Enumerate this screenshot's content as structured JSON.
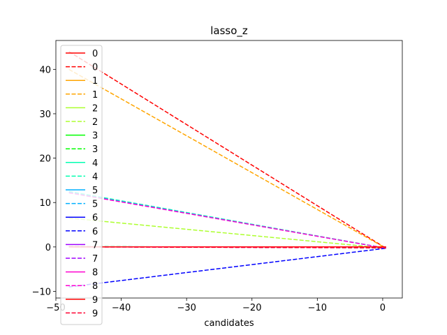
{
  "chart_data": {
    "type": "line",
    "title": "lasso_z",
    "xlabel": "candidates",
    "ylabel": "",
    "xlim": [
      -50,
      3
    ],
    "ylim": [
      -11.5,
      46.5
    ],
    "xticks": [
      -50,
      -40,
      -30,
      -20,
      -10,
      0
    ],
    "xtick_labels": [
      "−50",
      "−40",
      "−30",
      "−20",
      "−10",
      "0"
    ],
    "yticks": [
      -10,
      0,
      10,
      20,
      30,
      40
    ],
    "ytick_labels": [
      "−10",
      "0",
      "10",
      "20",
      "30",
      "40"
    ],
    "grid": false,
    "legend_position": "upper-left",
    "series": [
      {
        "name": "0",
        "color": "#ff0000",
        "dash": "solid",
        "x": [
          -48,
          0.5
        ],
        "y": [
          0,
          0
        ]
      },
      {
        "name": "0",
        "color": "#ff0000",
        "dash": "dashed",
        "x": [
          -48,
          0.5
        ],
        "y": [
          44.0,
          -0.3
        ]
      },
      {
        "name": "1",
        "color": "#ffa500",
        "dash": "solid",
        "x": [
          -48,
          0.5
        ],
        "y": [
          0,
          0
        ]
      },
      {
        "name": "1",
        "color": "#ffa500",
        "dash": "dashed",
        "x": [
          -48,
          0.5
        ],
        "y": [
          40.0,
          -0.3
        ]
      },
      {
        "name": "2",
        "color": "#adff2f",
        "dash": "solid",
        "x": [
          -48,
          0.5
        ],
        "y": [
          0,
          0
        ]
      },
      {
        "name": "2",
        "color": "#adff2f",
        "dash": "dashed",
        "x": [
          -48,
          0.5
        ],
        "y": [
          6.5,
          -0.3
        ]
      },
      {
        "name": "3",
        "color": "#00ff00",
        "dash": "solid",
        "x": [
          -48,
          0.5
        ],
        "y": [
          0,
          0
        ]
      },
      {
        "name": "3",
        "color": "#00ff00",
        "dash": "dashed",
        "x": [
          -48,
          0.5
        ],
        "y": [
          0.1,
          -0.2
        ]
      },
      {
        "name": "4",
        "color": "#00ffb0",
        "dash": "solid",
        "x": [
          -48,
          0.5
        ],
        "y": [
          0,
          0
        ]
      },
      {
        "name": "4",
        "color": "#00ffb0",
        "dash": "dashed",
        "x": [
          -48,
          0.5
        ],
        "y": [
          12.5,
          -0.3
        ]
      },
      {
        "name": "5",
        "color": "#00b0ff",
        "dash": "solid",
        "x": [
          -48,
          0.5
        ],
        "y": [
          0,
          0
        ]
      },
      {
        "name": "5",
        "color": "#00b0ff",
        "dash": "dashed",
        "x": [
          -48,
          0.5
        ],
        "y": [
          12.3,
          -0.3
        ]
      },
      {
        "name": "6",
        "color": "#0000ff",
        "dash": "solid",
        "x": [
          -48,
          0.5
        ],
        "y": [
          0,
          0
        ]
      },
      {
        "name": "6",
        "color": "#0000ff",
        "dash": "dashed",
        "x": [
          -48,
          0.5
        ],
        "y": [
          -9.0,
          -0.3
        ]
      },
      {
        "name": "7",
        "color": "#a000ff",
        "dash": "solid",
        "x": [
          -48,
          0.5
        ],
        "y": [
          0,
          0
        ]
      },
      {
        "name": "7",
        "color": "#a000ff",
        "dash": "dashed",
        "x": [
          -48,
          0.5
        ],
        "y": [
          0.05,
          -0.2
        ]
      },
      {
        "name": "8",
        "color": "#ff00d0",
        "dash": "solid",
        "x": [
          -48,
          0.5
        ],
        "y": [
          0,
          0
        ]
      },
      {
        "name": "8",
        "color": "#ff00d0",
        "dash": "dashed",
        "x": [
          -48,
          0.5
        ],
        "y": [
          12.2,
          -0.3
        ]
      },
      {
        "name": "9",
        "color": "#ff0000",
        "dash": "solid",
        "x": [
          -48,
          0.5
        ],
        "y": [
          0,
          0
        ]
      },
      {
        "name": "9",
        "color": "#ff0030",
        "dash": "dashed",
        "x": [
          -48,
          0.5
        ],
        "y": [
          0.0,
          -0.2
        ]
      }
    ]
  }
}
